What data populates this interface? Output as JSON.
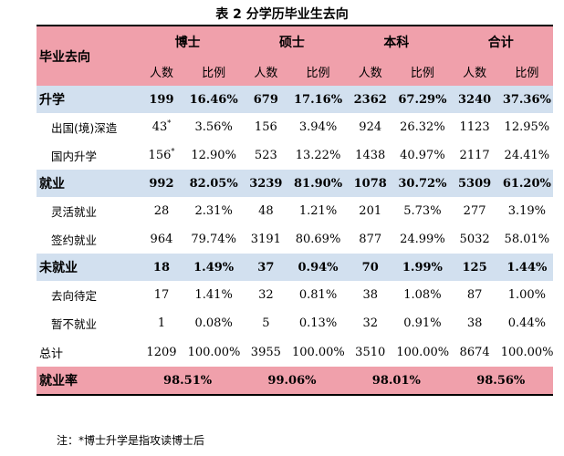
{
  "title": "表 2  分学历毕业生去向",
  "header": {
    "row_label": "毕业去向",
    "groups": [
      "博士",
      "硕士",
      "本科",
      "合计"
    ],
    "sub": [
      "人数",
      "比例"
    ]
  },
  "rows": [
    {
      "kind": "sec",
      "label": "升学",
      "cells": [
        "199",
        "16.46%",
        "679",
        "17.16%",
        "2362",
        "67.29%",
        "3240",
        "37.36%"
      ]
    },
    {
      "kind": "sub",
      "label": "出国(境)深造",
      "cells": [
        "43",
        "3.56%",
        "156",
        "3.94%",
        "924",
        "26.32%",
        "1123",
        "12.95%"
      ],
      "mark": "*"
    },
    {
      "kind": "sub",
      "label": "国内升学",
      "cells": [
        "156",
        "12.90%",
        "523",
        "13.22%",
        "1438",
        "40.97%",
        "2117",
        "24.41%"
      ],
      "mark": "*"
    },
    {
      "kind": "sec",
      "label": "就业",
      "cells": [
        "992",
        "82.05%",
        "3239",
        "81.90%",
        "1078",
        "30.72%",
        "5309",
        "61.20%"
      ]
    },
    {
      "kind": "sub",
      "label": "灵活就业",
      "cells": [
        "28",
        "2.31%",
        "48",
        "1.21%",
        "201",
        "5.73%",
        "277",
        "3.19%"
      ]
    },
    {
      "kind": "sub",
      "label": "签约就业",
      "cells": [
        "964",
        "79.74%",
        "3191",
        "80.69%",
        "877",
        "24.99%",
        "5032",
        "58.01%"
      ]
    },
    {
      "kind": "sec",
      "label": "未就业",
      "cells": [
        "18",
        "1.49%",
        "37",
        "0.94%",
        "70",
        "1.99%",
        "125",
        "1.44%"
      ]
    },
    {
      "kind": "sub",
      "label": "去向待定",
      "cells": [
        "17",
        "1.41%",
        "32",
        "0.81%",
        "38",
        "1.08%",
        "87",
        "1.00%"
      ]
    },
    {
      "kind": "sub",
      "label": "暂不就业",
      "cells": [
        "1",
        "0.08%",
        "5",
        "0.13%",
        "32",
        "0.91%",
        "38",
        "0.44%"
      ]
    },
    {
      "kind": "total",
      "label": "总计",
      "cells": [
        "1209",
        "100.00%",
        "3955",
        "100.00%",
        "3510",
        "100.00%",
        "8674",
        "100.00%"
      ]
    }
  ],
  "rate": {
    "label": "就业率",
    "values": [
      "98.51%",
      "99.06%",
      "98.01%",
      "98.56%"
    ]
  },
  "note": "注：*博士升学是指攻读博士后"
}
